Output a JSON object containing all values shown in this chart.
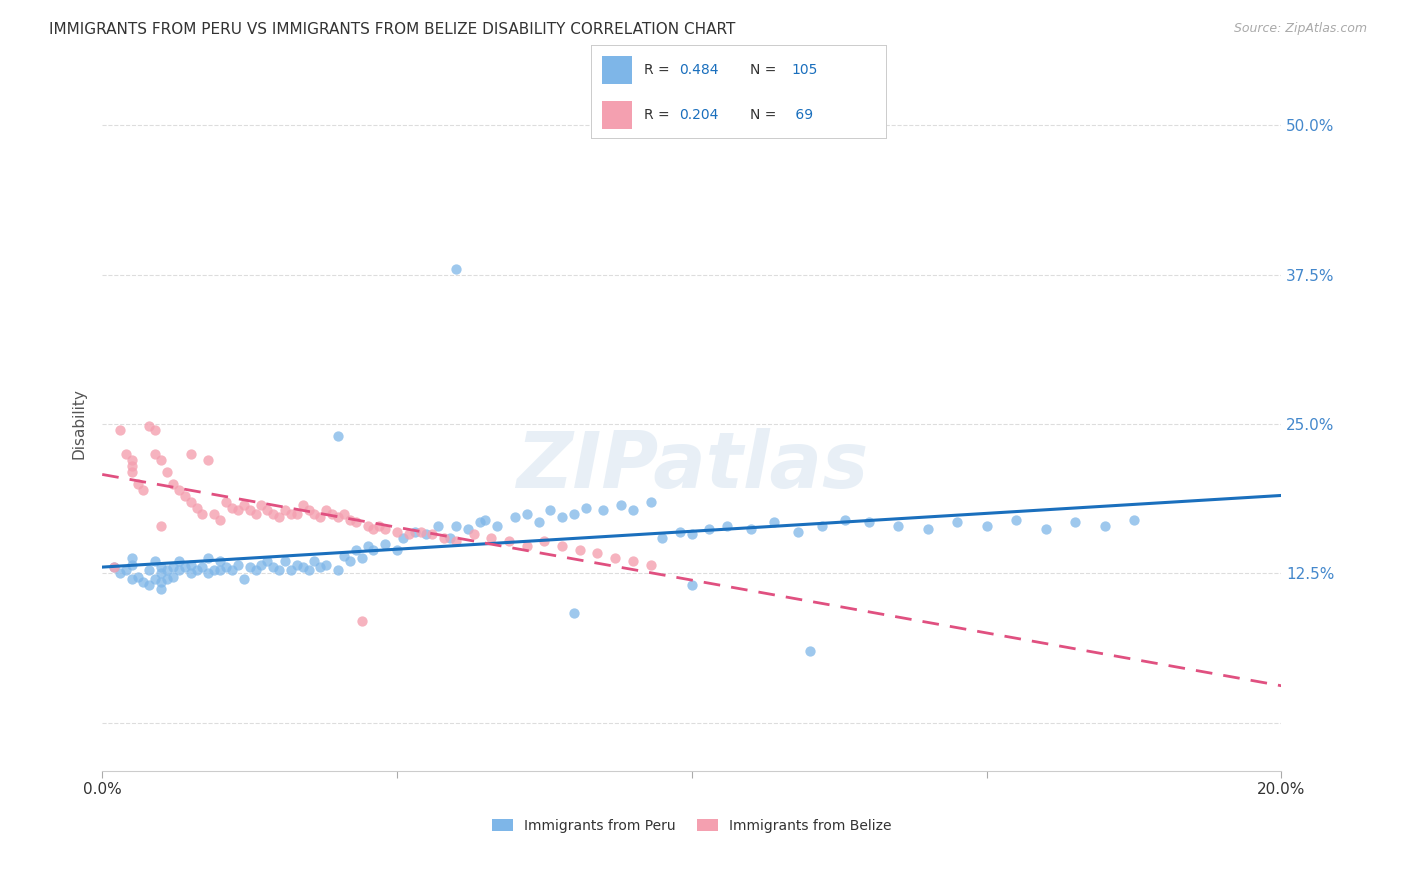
{
  "title": "IMMIGRANTS FROM PERU VS IMMIGRANTS FROM BELIZE DISABILITY CORRELATION CHART",
  "source": "Source: ZipAtlas.com",
  "ylabel": "Disability",
  "y_ticks": [
    0.0,
    0.125,
    0.25,
    0.375,
    0.5
  ],
  "y_tick_labels": [
    "",
    "12.5%",
    "25.0%",
    "37.5%",
    "50.0%"
  ],
  "xlim": [
    0.0,
    0.2
  ],
  "ylim": [
    -0.04,
    0.54
  ],
  "peru_color": "#7eb6e8",
  "belize_color": "#f4a0b0",
  "peru_line_color": "#1a6fbd",
  "belize_line_color": "#e05080",
  "peru_R": "0.484",
  "peru_N": "105",
  "belize_R": "0.204",
  "belize_N": "69",
  "legend_label_peru": "Immigrants from Peru",
  "legend_label_belize": "Immigrants from Belize",
  "watermark": "ZIPatlas",
  "background_color": "#ffffff",
  "grid_color": "#dddddd",
  "peru_scatter_x": [
    0.002,
    0.003,
    0.004,
    0.005,
    0.005,
    0.005,
    0.006,
    0.007,
    0.008,
    0.008,
    0.009,
    0.009,
    0.01,
    0.01,
    0.01,
    0.01,
    0.011,
    0.011,
    0.012,
    0.012,
    0.013,
    0.013,
    0.014,
    0.015,
    0.015,
    0.016,
    0.017,
    0.018,
    0.018,
    0.019,
    0.02,
    0.02,
    0.021,
    0.022,
    0.023,
    0.024,
    0.025,
    0.026,
    0.027,
    0.028,
    0.029,
    0.03,
    0.031,
    0.032,
    0.033,
    0.034,
    0.035,
    0.036,
    0.037,
    0.038,
    0.04,
    0.041,
    0.042,
    0.043,
    0.044,
    0.045,
    0.046,
    0.048,
    0.05,
    0.051,
    0.053,
    0.055,
    0.057,
    0.059,
    0.06,
    0.062,
    0.064,
    0.065,
    0.067,
    0.07,
    0.072,
    0.074,
    0.076,
    0.078,
    0.08,
    0.082,
    0.085,
    0.088,
    0.09,
    0.093,
    0.095,
    0.098,
    0.1,
    0.103,
    0.106,
    0.11,
    0.114,
    0.118,
    0.122,
    0.126,
    0.13,
    0.135,
    0.14,
    0.145,
    0.15,
    0.155,
    0.16,
    0.165,
    0.17,
    0.175,
    0.04,
    0.06,
    0.08,
    0.1,
    0.12
  ],
  "peru_scatter_y": [
    0.13,
    0.125,
    0.128,
    0.12,
    0.132,
    0.138,
    0.122,
    0.118,
    0.115,
    0.128,
    0.12,
    0.135,
    0.112,
    0.118,
    0.125,
    0.13,
    0.12,
    0.128,
    0.122,
    0.13,
    0.128,
    0.135,
    0.13,
    0.125,
    0.132,
    0.128,
    0.13,
    0.125,
    0.138,
    0.128,
    0.128,
    0.135,
    0.13,
    0.128,
    0.132,
    0.12,
    0.13,
    0.128,
    0.132,
    0.135,
    0.13,
    0.128,
    0.135,
    0.128,
    0.132,
    0.13,
    0.128,
    0.135,
    0.13,
    0.132,
    0.128,
    0.14,
    0.135,
    0.145,
    0.138,
    0.148,
    0.145,
    0.15,
    0.145,
    0.155,
    0.16,
    0.158,
    0.165,
    0.155,
    0.165,
    0.162,
    0.168,
    0.17,
    0.165,
    0.172,
    0.175,
    0.168,
    0.178,
    0.172,
    0.175,
    0.18,
    0.178,
    0.182,
    0.178,
    0.185,
    0.155,
    0.16,
    0.158,
    0.162,
    0.165,
    0.162,
    0.168,
    0.16,
    0.165,
    0.17,
    0.168,
    0.165,
    0.162,
    0.168,
    0.165,
    0.17,
    0.162,
    0.168,
    0.165,
    0.17,
    0.24,
    0.38,
    0.092,
    0.115,
    0.06
  ],
  "belize_scatter_x": [
    0.002,
    0.003,
    0.004,
    0.005,
    0.005,
    0.005,
    0.006,
    0.007,
    0.008,
    0.009,
    0.009,
    0.01,
    0.01,
    0.011,
    0.012,
    0.013,
    0.014,
    0.015,
    0.015,
    0.016,
    0.017,
    0.018,
    0.019,
    0.02,
    0.021,
    0.022,
    0.023,
    0.024,
    0.025,
    0.026,
    0.027,
    0.028,
    0.029,
    0.03,
    0.031,
    0.032,
    0.033,
    0.034,
    0.035,
    0.036,
    0.037,
    0.038,
    0.039,
    0.04,
    0.041,
    0.042,
    0.043,
    0.044,
    0.045,
    0.046,
    0.047,
    0.048,
    0.05,
    0.052,
    0.054,
    0.056,
    0.058,
    0.06,
    0.063,
    0.066,
    0.069,
    0.072,
    0.075,
    0.078,
    0.081,
    0.084,
    0.087,
    0.09,
    0.093
  ],
  "belize_scatter_y": [
    0.13,
    0.245,
    0.225,
    0.22,
    0.215,
    0.21,
    0.2,
    0.195,
    0.248,
    0.245,
    0.225,
    0.22,
    0.165,
    0.21,
    0.2,
    0.195,
    0.19,
    0.185,
    0.225,
    0.18,
    0.175,
    0.22,
    0.175,
    0.17,
    0.185,
    0.18,
    0.178,
    0.182,
    0.178,
    0.175,
    0.182,
    0.178,
    0.175,
    0.172,
    0.178,
    0.175,
    0.175,
    0.182,
    0.178,
    0.175,
    0.172,
    0.178,
    0.175,
    0.172,
    0.175,
    0.17,
    0.168,
    0.085,
    0.165,
    0.162,
    0.165,
    0.162,
    0.16,
    0.158,
    0.16,
    0.158,
    0.155,
    0.152,
    0.158,
    0.155,
    0.152,
    0.148,
    0.152,
    0.148,
    0.145,
    0.142,
    0.138,
    0.135,
    0.132
  ]
}
